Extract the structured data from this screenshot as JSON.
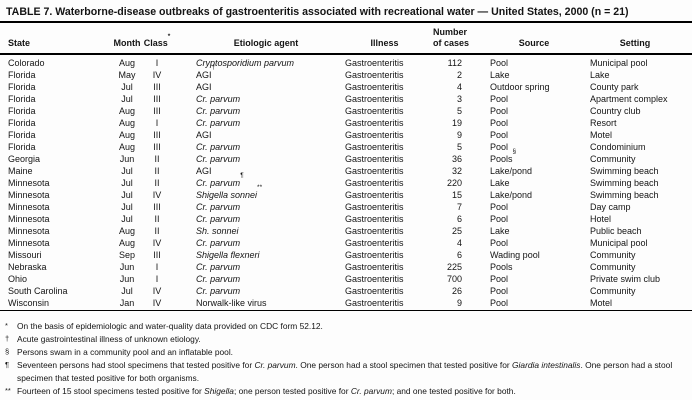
{
  "title": "TABLE 7. Waterborne-disease outbreaks of gastroenteritis associated with recreational water — United States, 2000 (n = 21)",
  "colors": {
    "text": "#141414",
    "background": "#fdfdfd",
    "rule": "#000000"
  },
  "table": {
    "header": {
      "state": "State",
      "month": "Month",
      "class_label": "Class",
      "class_sup": "*",
      "agent": "Etiologic agent",
      "illness": "Illness",
      "cases_line1": "Number",
      "cases_line2": "of cases",
      "source": "Source",
      "setting": "Setting"
    },
    "rows": [
      {
        "state": "Colorado",
        "month": "Aug",
        "class": "I",
        "agent": {
          "text": "Cryptosporidium parvum",
          "italic": true,
          "sup": ""
        },
        "illness": "Gastroenteritis",
        "cases": "112",
        "source": {
          "text": "Pool",
          "sup": ""
        },
        "setting": "Municipal pool"
      },
      {
        "state": "Florida",
        "month": "May",
        "class": "IV",
        "agent": {
          "text": "AGI",
          "italic": false,
          "sup": "†"
        },
        "illness": "Gastroenteritis",
        "cases": "2",
        "source": {
          "text": "Lake",
          "sup": ""
        },
        "setting": "Lake"
      },
      {
        "state": "Florida",
        "month": "Jul",
        "class": "III",
        "agent": {
          "text": "AGI",
          "italic": false,
          "sup": ""
        },
        "illness": "Gastroenteritis",
        "cases": "4",
        "source": {
          "text": "Outdoor spring",
          "sup": ""
        },
        "setting": "County park"
      },
      {
        "state": "Florida",
        "month": "Jul",
        "class": "III",
        "agent": {
          "text": "Cr. parvum",
          "italic": true,
          "sup": ""
        },
        "illness": "Gastroenteritis",
        "cases": "3",
        "source": {
          "text": "Pool",
          "sup": ""
        },
        "setting": "Apartment complex"
      },
      {
        "state": "Florida",
        "month": "Aug",
        "class": "III",
        "agent": {
          "text": "Cr. parvum",
          "italic": true,
          "sup": ""
        },
        "illness": "Gastroenteritis",
        "cases": "5",
        "source": {
          "text": "Pool",
          "sup": ""
        },
        "setting": "Country club"
      },
      {
        "state": "Florida",
        "month": "Aug",
        "class": "I",
        "agent": {
          "text": "Cr. parvum",
          "italic": true,
          "sup": ""
        },
        "illness": "Gastroenteritis",
        "cases": "19",
        "source": {
          "text": "Pool",
          "sup": ""
        },
        "setting": "Resort"
      },
      {
        "state": "Florida",
        "month": "Aug",
        "class": "III",
        "agent": {
          "text": "AGI",
          "italic": false,
          "sup": ""
        },
        "illness": "Gastroenteritis",
        "cases": "9",
        "source": {
          "text": "Pool",
          "sup": ""
        },
        "setting": "Motel"
      },
      {
        "state": "Florida",
        "month": "Aug",
        "class": "III",
        "agent": {
          "text": "Cr. parvum",
          "italic": true,
          "sup": ""
        },
        "illness": "Gastroenteritis",
        "cases": "5",
        "source": {
          "text": "Pool",
          "sup": ""
        },
        "setting": "Condominium"
      },
      {
        "state": "Georgia",
        "month": "Jun",
        "class": "II",
        "agent": {
          "text": "Cr. parvum",
          "italic": true,
          "sup": ""
        },
        "illness": "Gastroenteritis",
        "cases": "36",
        "source": {
          "text": "Pools",
          "sup": "§"
        },
        "setting": "Community"
      },
      {
        "state": "Maine",
        "month": "Jul",
        "class": "II",
        "agent": {
          "text": "AGI",
          "italic": false,
          "sup": ""
        },
        "illness": "Gastroenteritis",
        "cases": "32",
        "source": {
          "text": "Lake/pond",
          "sup": ""
        },
        "setting": "Swimming beach"
      },
      {
        "state": "Minnesota",
        "month": "Jul",
        "class": "II",
        "agent": {
          "text": "Cr. parvum",
          "italic": true,
          "sup": "¶"
        },
        "illness": "Gastroenteritis",
        "cases": "220",
        "source": {
          "text": "Lake",
          "sup": ""
        },
        "setting": "Swimming beach"
      },
      {
        "state": "Minnesota",
        "month": "Jul",
        "class": "IV",
        "agent": {
          "text": "Shigella sonnei",
          "italic": true,
          "sup": "**"
        },
        "illness": "Gastroenteritis",
        "cases": "15",
        "source": {
          "text": "Lake/pond",
          "sup": ""
        },
        "setting": "Swimming beach"
      },
      {
        "state": "Minnesota",
        "month": "Jul",
        "class": "III",
        "agent": {
          "text": "Cr. parvum",
          "italic": true,
          "sup": ""
        },
        "illness": "Gastroenteritis",
        "cases": "7",
        "source": {
          "text": "Pool",
          "sup": ""
        },
        "setting": "Day camp"
      },
      {
        "state": "Minnesota",
        "month": "Jul",
        "class": "II",
        "agent": {
          "text": "Cr. parvum",
          "italic": true,
          "sup": ""
        },
        "illness": "Gastroenteritis",
        "cases": "6",
        "source": {
          "text": "Pool",
          "sup": ""
        },
        "setting": "Hotel"
      },
      {
        "state": "Minnesota",
        "month": "Aug",
        "class": "II",
        "agent": {
          "text": "Sh. sonnei",
          "italic": true,
          "sup": ""
        },
        "illness": "Gastroenteritis",
        "cases": "25",
        "source": {
          "text": "Lake",
          "sup": ""
        },
        "setting": "Public beach"
      },
      {
        "state": "Minnesota",
        "month": "Aug",
        "class": "IV",
        "agent": {
          "text": "Cr. parvum",
          "italic": true,
          "sup": ""
        },
        "illness": "Gastroenteritis",
        "cases": "4",
        "source": {
          "text": "Pool",
          "sup": ""
        },
        "setting": "Municipal pool"
      },
      {
        "state": "Missouri",
        "month": "Sep",
        "class": "III",
        "agent": {
          "text": "Shigella flexneri",
          "italic": true,
          "sup": ""
        },
        "illness": "Gastroenteritis",
        "cases": "6",
        "source": {
          "text": "Wading pool",
          "sup": ""
        },
        "setting": "Community"
      },
      {
        "state": "Nebraska",
        "month": "Jun",
        "class": "I",
        "agent": {
          "text": "Cr. parvum",
          "italic": true,
          "sup": ""
        },
        "illness": "Gastroenteritis",
        "cases": "225",
        "source": {
          "text": "Pools",
          "sup": ""
        },
        "setting": "Community"
      },
      {
        "state": "Ohio",
        "month": "Jun",
        "class": "I",
        "agent": {
          "text": "Cr. parvum",
          "italic": true,
          "sup": ""
        },
        "illness": "Gastroenteritis",
        "cases": "700",
        "source": {
          "text": "Pool",
          "sup": ""
        },
        "setting": "Private swim club"
      },
      {
        "state": "South Carolina",
        "month": "Jul",
        "class": "IV",
        "agent": {
          "text": "Cr. parvum",
          "italic": true,
          "sup": ""
        },
        "illness": "Gastroenteritis",
        "cases": "26",
        "source": {
          "text": "Pool",
          "sup": ""
        },
        "setting": "Community"
      },
      {
        "state": "Wisconsin",
        "month": "Jan",
        "class": "IV",
        "agent": {
          "text": "Norwalk-like virus",
          "italic": false,
          "sup": ""
        },
        "illness": "Gastroenteritis",
        "cases": "9",
        "source": {
          "text": "Pool",
          "sup": ""
        },
        "setting": "Motel"
      }
    ]
  },
  "footnotes": [
    {
      "marker": "*",
      "segments": [
        {
          "text": "On the basis of epidemiologic and water-quality data provided on CDC form 52.12.",
          "italic": false
        }
      ]
    },
    {
      "marker": "†",
      "segments": [
        {
          "text": "Acute gastrointestinal illness of unknown etiology.",
          "italic": false
        }
      ]
    },
    {
      "marker": "§",
      "segments": [
        {
          "text": "Persons swam in a community pool and an inflatable pool.",
          "italic": false
        }
      ]
    },
    {
      "marker": "¶",
      "segments": [
        {
          "text": "Seventeen persons had stool specimens that tested positive for ",
          "italic": false
        },
        {
          "text": "Cr. parvum",
          "italic": true
        },
        {
          "text": ". One person had a stool specimen that tested positive for ",
          "italic": false
        },
        {
          "text": "Giardia intestinalis",
          "italic": true
        },
        {
          "text": ". One person had a stool specimen that tested positive for both organisms.",
          "italic": false
        }
      ]
    },
    {
      "marker": "**",
      "segments": [
        {
          "text": "Fourteen of 15 stool specimens tested positive for ",
          "italic": false
        },
        {
          "text": "Shigella",
          "italic": true
        },
        {
          "text": "; one person tested positive for ",
          "italic": false
        },
        {
          "text": "Cr. parvum",
          "italic": true
        },
        {
          "text": "; and one tested positive for both.",
          "italic": false
        }
      ]
    }
  ]
}
